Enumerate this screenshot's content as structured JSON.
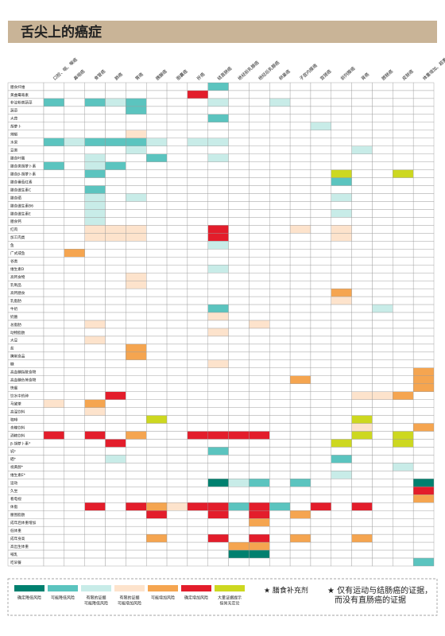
{
  "header": {
    "title": "舌尖上的癌症"
  },
  "columns": [
    "口腔、咽、喉癌",
    "鼻咽癌",
    "食管癌",
    "肺癌",
    "胃癌",
    "胰腺癌",
    "胆囊癌",
    "肝癌",
    "结直肠癌",
    "绝经前乳腺癌",
    "绝经后乳腺癌",
    "卵巢癌",
    "子宫内膜癌",
    "宫颈癌",
    "前列腺癌",
    "肾癌",
    "膀胱癌",
    "皮肤癌",
    "体重增加、超重及肥胖"
  ],
  "rows": [
    {
      "label": "膳食纤维",
      "cells": "........1.........."
    },
    {
      "label": "黄曲霉毒素",
      "cells": ".......5..........."
    },
    {
      "label": "非淀粉类蔬菜",
      "cells": "1.121...2..2......."
    },
    {
      "label": "蔬菜",
      "cells": "....1.............."
    },
    {
      "label": "大蒜",
      "cells": "........1.........."
    },
    {
      "label": "胡萝卜",
      "cells": ".............2....."
    },
    {
      "label": "辣椒",
      "cells": "....3.............."
    },
    {
      "label": "水果",
      "cells": "121112.22.........."
    },
    {
      "label": "豆类",
      "cells": "....2..........2..."
    },
    {
      "label": "膳食叶酸",
      "cells": "..2..1..2.........."
    },
    {
      "label": "膳食类胡萝卜素",
      "cells": "1.21..............."
    },
    {
      "label": "膳食β-胡萝卜素",
      "cells": "..1...........6..6."
    },
    {
      "label": "膳食番茄红素",
      "cells": "..............1...."
    },
    {
      "label": "膳食维生素C",
      "cells": "..1................"
    },
    {
      "label": "膳食硒",
      "cells": "..2.2.........2...."
    },
    {
      "label": "膳食维生素B6",
      "cells": "..2................"
    },
    {
      "label": "膳食维生素E",
      "cells": "..2...........2...."
    },
    {
      "label": "膳食钙",
      "cells": "..2................"
    },
    {
      "label": "红肉",
      "cells": "..333...5...3.3...."
    },
    {
      "label": "加工肉类",
      "cells": "..333...5.....3...."
    },
    {
      "label": "鱼",
      "cells": "........2.........."
    },
    {
      "label": "广式咸鱼",
      "cells": ".4................."
    },
    {
      "label": "谷类",
      "cells": "..................."
    },
    {
      "label": "维生素D",
      "cells": "........2.........."
    },
    {
      "label": "高钙食物",
      "cells": "....3.............."
    },
    {
      "label": "乳制品",
      "cells": "....3.............."
    },
    {
      "label": "高钙膳食",
      "cells": "..............4...."
    },
    {
      "label": "乳脂肪",
      "cells": "..............3...."
    },
    {
      "label": "牛奶",
      "cells": "........1.......2.."
    },
    {
      "label": "奶酪",
      "cells": "........3.........."
    },
    {
      "label": "总脂肪",
      "cells": "..3.......3........"
    },
    {
      "label": "动物脂肪",
      "cells": "........3.........."
    },
    {
      "label": "大豆",
      "cells": "..3................"
    },
    {
      "label": "盐",
      "cells": "....4.............."
    },
    {
      "label": "腌制食品",
      "cells": "....4.............."
    },
    {
      "label": "糖",
      "cells": "........3.........."
    },
    {
      "label": "高血糖指数食物",
      "cells": "..................4"
    },
    {
      "label": "高血糖负荷食物",
      "cells": "............4.....4"
    },
    {
      "label": "快餐",
      "cells": "..................4"
    },
    {
      "label": "饮水中的砷",
      "cells": "...5...........334."
    },
    {
      "label": "马黛茶",
      "cells": "3.4................"
    },
    {
      "label": "高温饮料",
      "cells": "..3................"
    },
    {
      "label": "咖啡",
      "cells": ".....6.........6..."
    },
    {
      "label": "含糖饮料",
      "cells": "...............3..4"
    },
    {
      "label": "酒精饮料",
      "cells": "5.5.4..5555....6.6."
    },
    {
      "label": "β-胡萝卜素*",
      "cells": "...5..........6..6."
    },
    {
      "label": "钙*",
      "cells": "........1.........."
    },
    {
      "label": "硒*",
      "cells": "...2..........1...."
    },
    {
      "label": "视黄醇*",
      "cells": ".................2."
    },
    {
      "label": "维生素E*",
      "cells": "..............2...."
    },
    {
      "label": "运动",
      "cells": "........021.1.....0"
    },
    {
      "label": "久坐",
      "cells": "..................5"
    },
    {
      "label": "看电视",
      "cells": "..................4"
    },
    {
      "label": "体脂",
      "cells": "..5.54355151.5.5..."
    },
    {
      "label": "腰围脂肪",
      "cells": ".....5..5.5.4......"
    },
    {
      "label": "成年后体重增加",
      "cells": "..........4........"
    },
    {
      "label": "低体重",
      "cells": "..................."
    },
    {
      "label": "成年身高",
      "cells": ".....4..5.5.4..4..."
    },
    {
      "label": "高出生体重",
      "cells": ".........44........"
    },
    {
      "label": "哺乳",
      "cells": ".........00........"
    },
    {
      "label": "吃早餐",
      "cells": "..................1"
    }
  ],
  "legend": [
    {
      "color": "#00806f",
      "lines": [
        "确定降低风险"
      ]
    },
    {
      "color": "#5bc4bf",
      "lines": [
        "可能降低风险"
      ]
    },
    {
      "color": "#c8ece8",
      "lines": [
        "有限的证据",
        "可能降低风险"
      ]
    },
    {
      "color": "#fde3cc",
      "lines": [
        "有限的证据",
        "可能增加风险"
      ]
    },
    {
      "color": "#f5a550",
      "lines": [
        "可能增加风险"
      ]
    },
    {
      "color": "#e31d2b",
      "lines": [
        "确定增加风险"
      ]
    },
    {
      "color": "#cdd820",
      "lines": [
        "大量证据提示",
        "但尚无定论"
      ]
    }
  ],
  "notes": [
    [
      "★ 膳食补充剂"
    ],
    [
      "★ 仅有运动与结肠癌的证据，",
      "而没有直肠癌的证据"
    ]
  ]
}
